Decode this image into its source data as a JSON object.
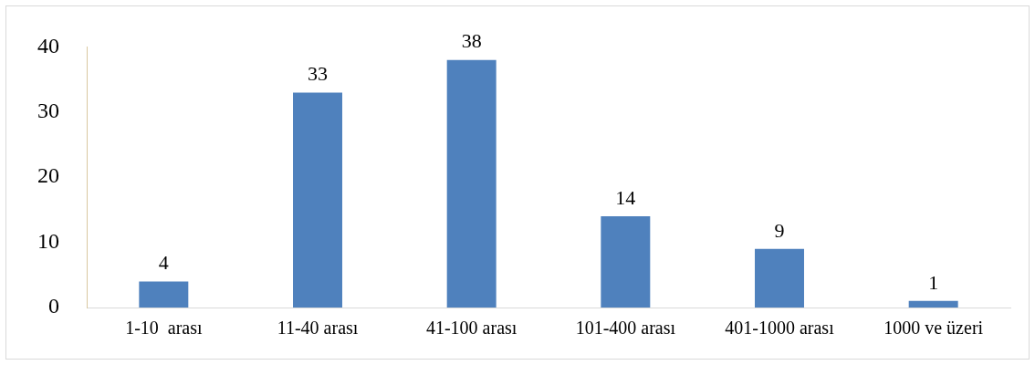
{
  "chart_data": {
    "type": "bar",
    "categories": [
      "1-10  arası",
      "11-40 arası",
      "41-100 arası",
      "101-400 arası",
      "401-1000 arası",
      "1000 ve üzeri"
    ],
    "values": [
      4,
      33,
      38,
      14,
      9,
      1
    ],
    "color": "#4f81bd",
    "ylim": [
      0,
      40
    ],
    "yticks": [
      0,
      10,
      20,
      30,
      40
    ],
    "grid": false,
    "legend": false,
    "data_labels": true
  }
}
